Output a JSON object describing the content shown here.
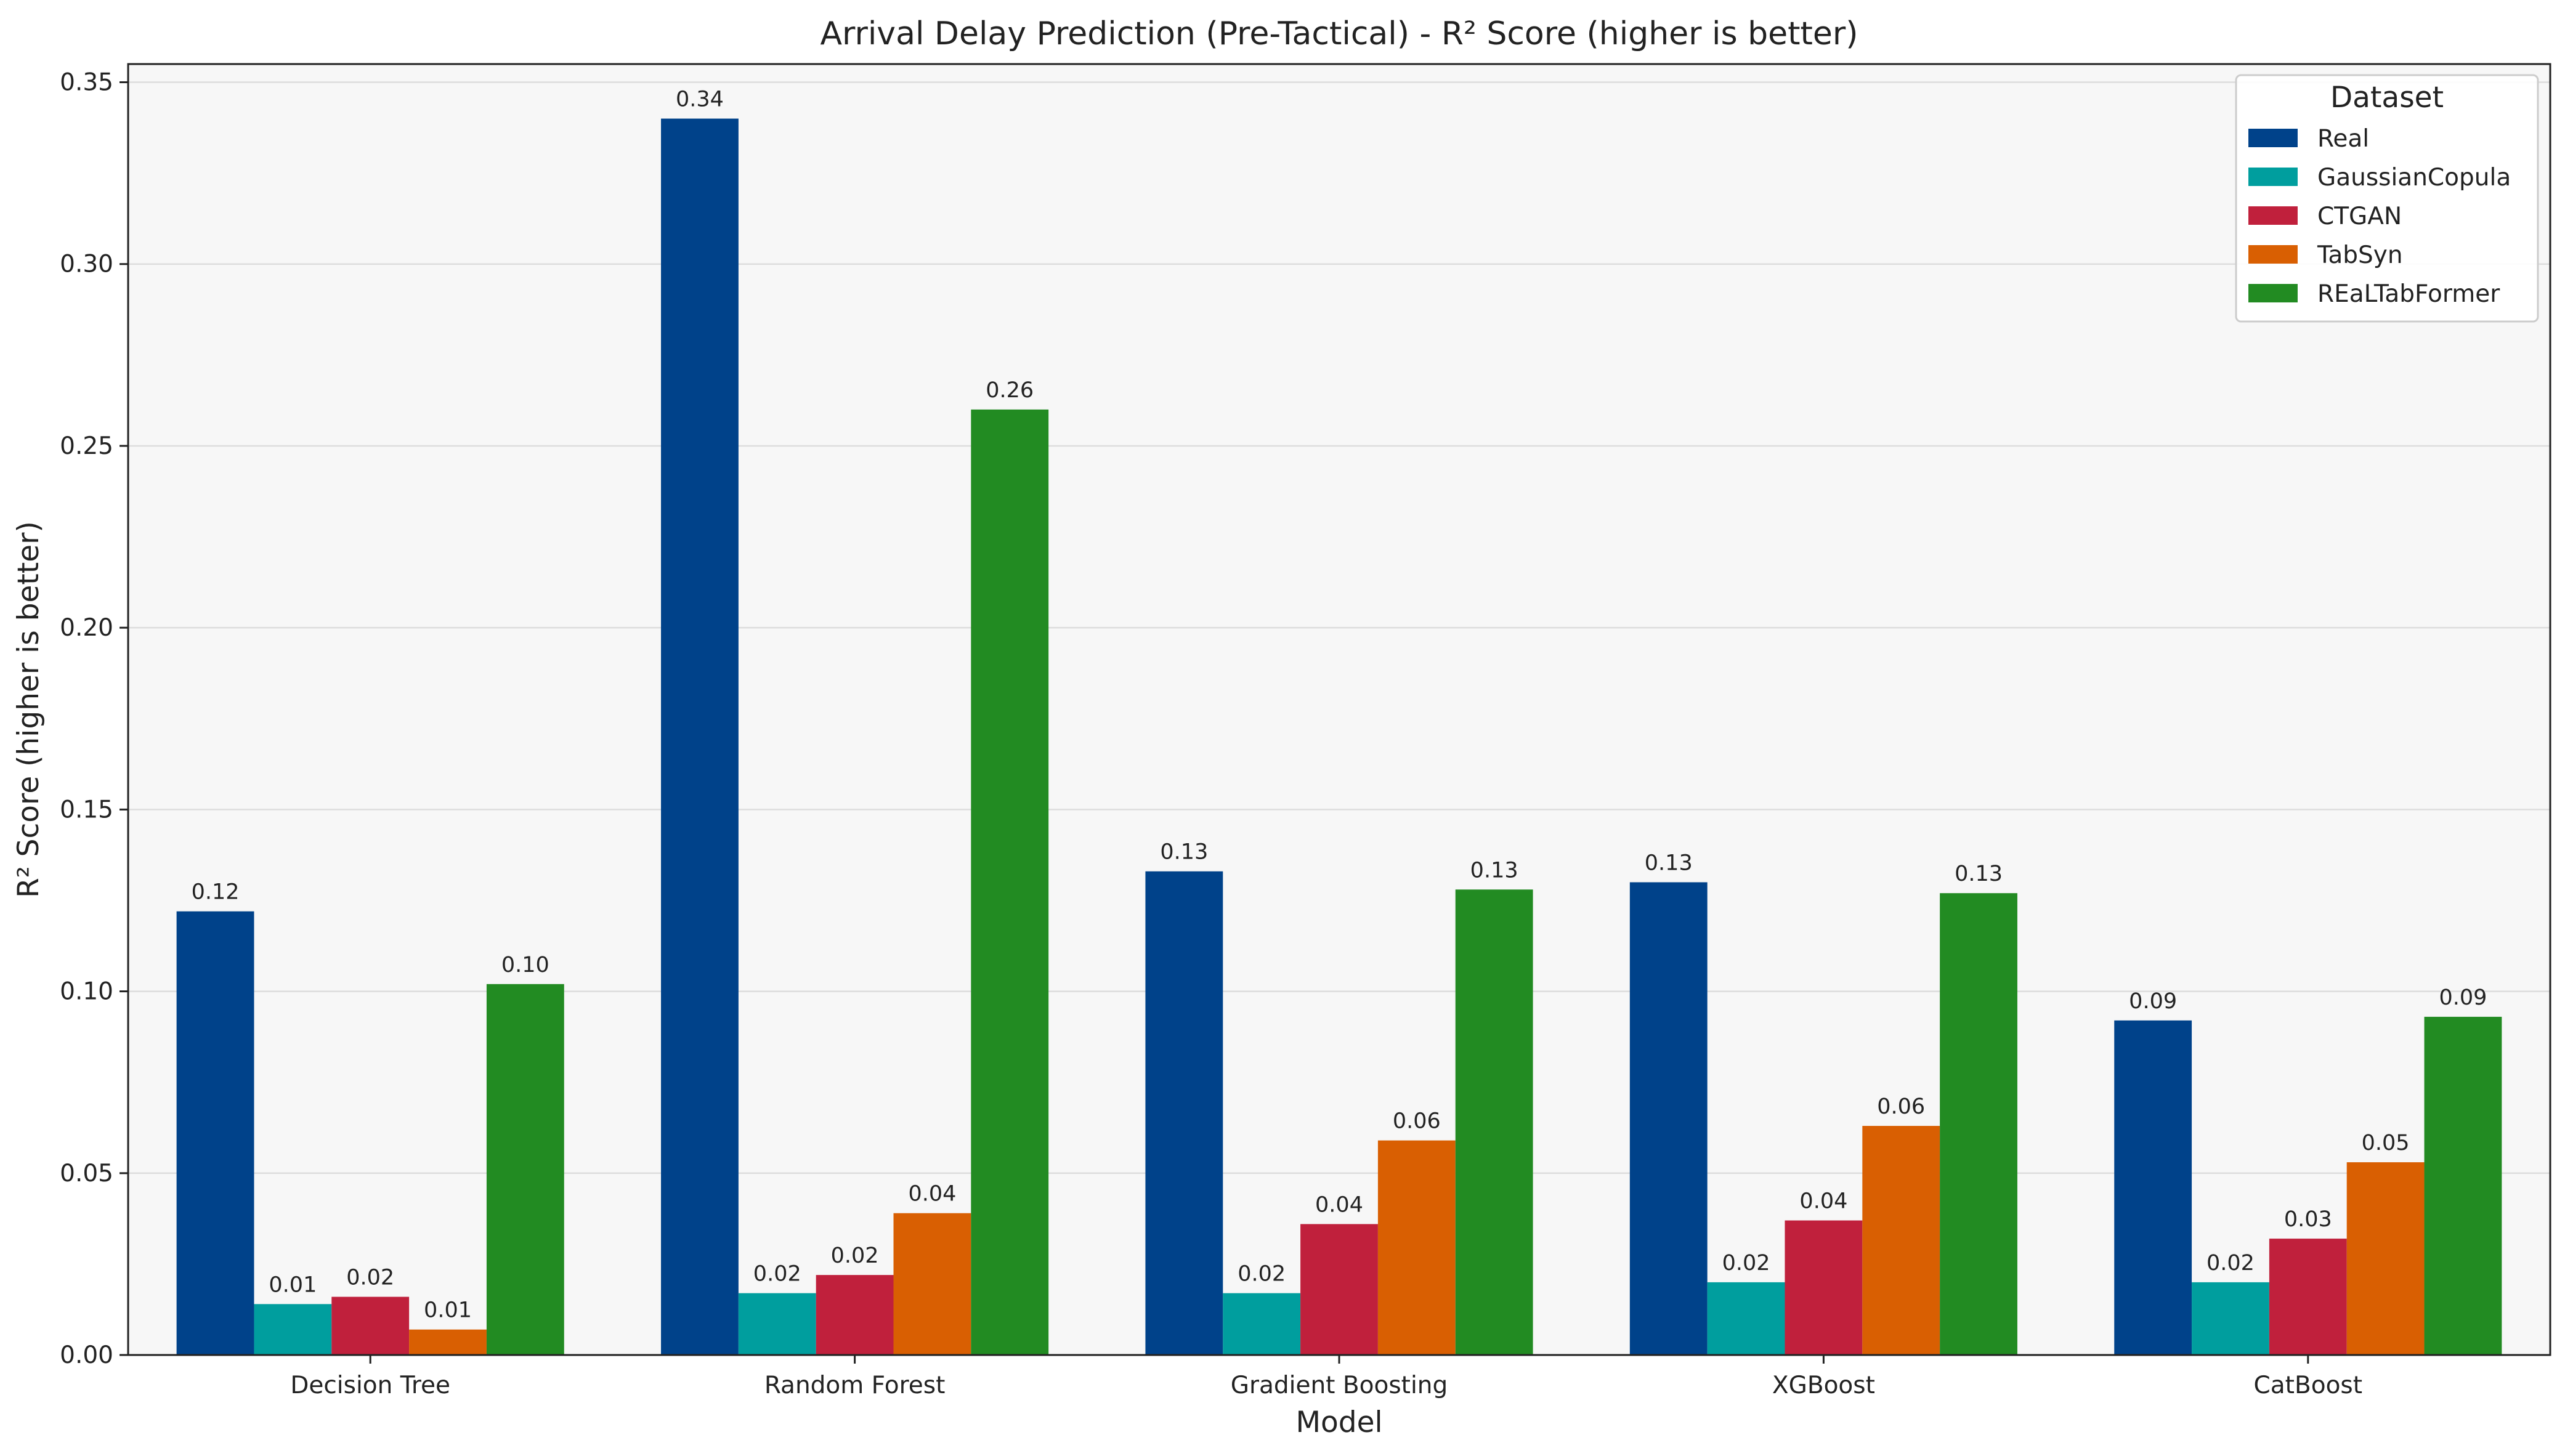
{
  "chart_data": {
    "type": "bar",
    "title": "Arrival Delay Prediction (Pre-Tactical) - R² Score (higher is better)",
    "xlabel": "Model",
    "ylabel": "R² Score (higher is better)",
    "ylim": [
      0,
      0.355
    ],
    "yticks": [
      "0.00",
      "0.05",
      "0.10",
      "0.15",
      "0.20",
      "0.25",
      "0.30",
      "0.35"
    ],
    "grid": true,
    "legend_title": "Dataset",
    "legend_position": "top-right",
    "categories": [
      "Decision Tree",
      "Random Forest",
      "Gradient Boosting",
      "XGBoost",
      "CatBoost"
    ],
    "series": [
      {
        "name": "Real",
        "color": "#00428a",
        "values": [
          0.122,
          0.34,
          0.133,
          0.13,
          0.092
        ],
        "labels": [
          "0.12",
          "0.34",
          "0.13",
          "0.13",
          "0.09"
        ]
      },
      {
        "name": "GaussianCopula",
        "color": "#009e9e",
        "values": [
          0.014,
          0.017,
          0.017,
          0.02,
          0.02
        ],
        "labels": [
          "0.01",
          "0.02",
          "0.02",
          "0.02",
          "0.02"
        ]
      },
      {
        "name": "CTGAN",
        "color": "#c0203c",
        "values": [
          0.016,
          0.022,
          0.036,
          0.037,
          0.032
        ],
        "labels": [
          "0.02",
          "0.02",
          "0.04",
          "0.04",
          "0.03"
        ]
      },
      {
        "name": "TabSyn",
        "color": "#d95f02",
        "values": [
          0.007,
          0.039,
          0.059,
          0.063,
          0.053
        ],
        "labels": [
          "0.01",
          "0.04",
          "0.06",
          "0.06",
          "0.05"
        ]
      },
      {
        "name": "REaLTabFormer",
        "color": "#228b22",
        "values": [
          0.102,
          0.26,
          0.128,
          0.127,
          0.093
        ],
        "labels": [
          "0.10",
          "0.26",
          "0.13",
          "0.13",
          "0.09"
        ]
      }
    ]
  }
}
